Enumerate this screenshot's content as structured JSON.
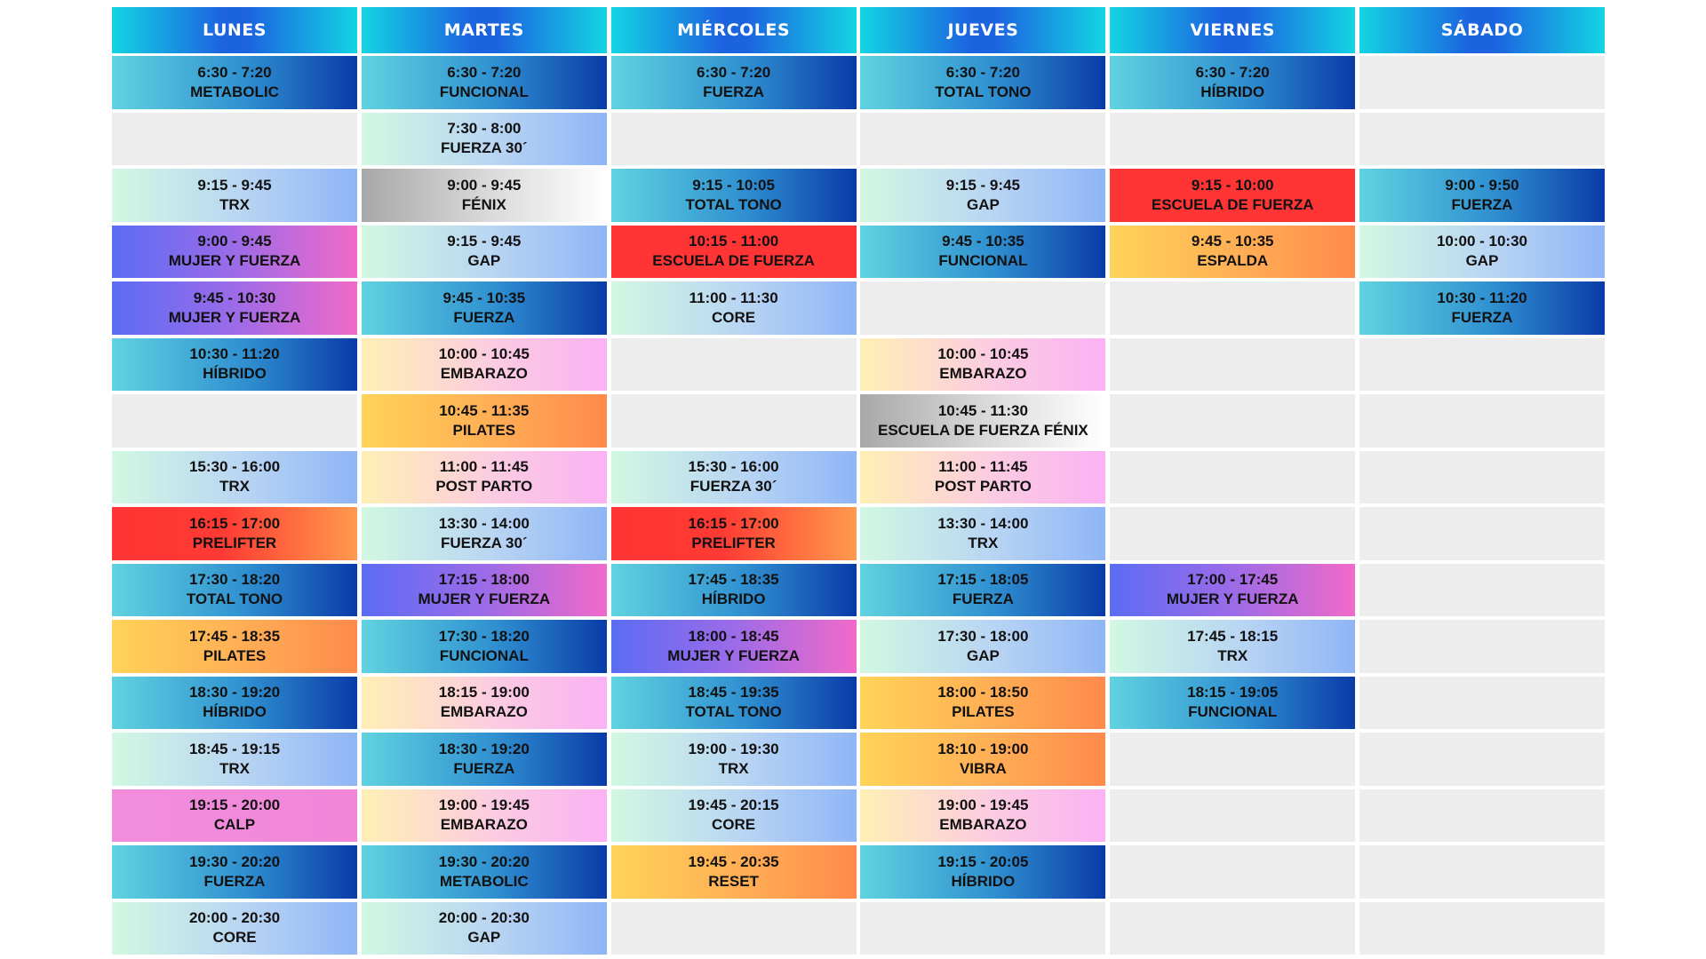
{
  "days": [
    {
      "name": "LUNES",
      "cells": [
        {
          "time": "6:30 - 7:20",
          "name": "METABOLIC",
          "style": "teal"
        },
        {
          "time": "",
          "name": "",
          "style": "empty"
        },
        {
          "time": "9:15 - 9:45",
          "name": "TRX",
          "style": "mint"
        },
        {
          "time": "9:00 - 9:45",
          "name": "MUJER Y FUERZA",
          "style": "violet"
        },
        {
          "time": "9:45 - 10:30",
          "name": "MUJER Y FUERZA",
          "style": "violet"
        },
        {
          "time": "10:30 - 11:20",
          "name": "HÍBRIDO",
          "style": "teal"
        },
        {
          "time": "",
          "name": "",
          "style": "empty"
        },
        {
          "time": "15:30 - 16:00",
          "name": "TRX",
          "style": "mint"
        },
        {
          "time": "16:15 - 17:00",
          "name": "PRELIFTER",
          "style": "red"
        },
        {
          "time": "17:30 - 18:20",
          "name": "TOTAL TONO",
          "style": "teal"
        },
        {
          "time": "17:45 - 18:35",
          "name": "PILATES",
          "style": "orange"
        },
        {
          "time": "18:30 - 19:20",
          "name": "HÍBRIDO",
          "style": "teal"
        },
        {
          "time": "18:45 - 19:15",
          "name": "TRX",
          "style": "mint"
        },
        {
          "time": "19:15 - 20:00",
          "name": "CALP",
          "style": "pink"
        },
        {
          "time": "19:30 - 20:20",
          "name": "FUERZA",
          "style": "teal"
        },
        {
          "time": "20:00 - 20:30",
          "name": "CORE",
          "style": "mint"
        }
      ]
    },
    {
      "name": "MARTES",
      "cells": [
        {
          "time": "6:30 - 7:20",
          "name": "FUNCIONAL",
          "style": "teal"
        },
        {
          "time": "7:30 - 8:00",
          "name": "FUERZA 30´",
          "style": "mint"
        },
        {
          "time": "9:00 - 9:45",
          "name": "FÉNIX",
          "style": "silver"
        },
        {
          "time": "9:15 - 9:45",
          "name": "GAP",
          "style": "mint"
        },
        {
          "time": "9:45 - 10:35",
          "name": "FUERZA",
          "style": "teal"
        },
        {
          "time": "10:00 - 10:45",
          "name": "EMBARAZO",
          "style": "peach"
        },
        {
          "time": "10:45 - 11:35",
          "name": "PILATES",
          "style": "orange"
        },
        {
          "time": "11:00 - 11:45",
          "name": "POST PARTO",
          "style": "peach"
        },
        {
          "time": "13:30 - 14:00",
          "name": "FUERZA 30´",
          "style": "mint"
        },
        {
          "time": "17:15 - 18:00",
          "name": "MUJER Y FUERZA",
          "style": "violet"
        },
        {
          "time": "17:30 - 18:20",
          "name": "FUNCIONAL",
          "style": "teal"
        },
        {
          "time": "18:15 - 19:00",
          "name": "EMBARAZO",
          "style": "peach"
        },
        {
          "time": "18:30 - 19:20",
          "name": "FUERZA",
          "style": "teal"
        },
        {
          "time": "19:00 - 19:45",
          "name": "EMBARAZO",
          "style": "peach"
        },
        {
          "time": "19:30 - 20:20",
          "name": "METABOLIC",
          "style": "teal"
        },
        {
          "time": "20:00 - 20:30",
          "name": "GAP",
          "style": "mint"
        }
      ]
    },
    {
      "name": "MIÉRCOLES",
      "cells": [
        {
          "time": "6:30 - 7:20",
          "name": "FUERZA",
          "style": "teal"
        },
        {
          "time": "",
          "name": "",
          "style": "empty"
        },
        {
          "time": "9:15 - 10:05",
          "name": "TOTAL TONO",
          "style": "teal"
        },
        {
          "time": "10:15 - 11:00",
          "name": "ESCUELA DE FUERZA",
          "style": "red-flat"
        },
        {
          "time": "11:00 - 11:30",
          "name": "CORE",
          "style": "mint"
        },
        {
          "time": "",
          "name": "",
          "style": "empty"
        },
        {
          "time": "",
          "name": "",
          "style": "empty"
        },
        {
          "time": "15:30 - 16:00",
          "name": "FUERZA 30´",
          "style": "mint"
        },
        {
          "time": "16:15 - 17:00",
          "name": "PRELIFTER",
          "style": "red"
        },
        {
          "time": "17:45 - 18:35",
          "name": "HÍBRIDO",
          "style": "teal"
        },
        {
          "time": "18:00 - 18:45",
          "name": "MUJER Y FUERZA",
          "style": "violet"
        },
        {
          "time": "18:45 - 19:35",
          "name": "TOTAL TONO",
          "style": "teal"
        },
        {
          "time": "19:00 - 19:30",
          "name": "TRX",
          "style": "mint"
        },
        {
          "time": "19:45 - 20:15",
          "name": "CORE",
          "style": "mint"
        },
        {
          "time": "19:45 - 20:35",
          "name": "RESET",
          "style": "orange"
        },
        {
          "time": "",
          "name": "",
          "style": "empty"
        }
      ]
    },
    {
      "name": "JUEVES",
      "cells": [
        {
          "time": "6:30 - 7:20",
          "name": "TOTAL TONO",
          "style": "teal"
        },
        {
          "time": "",
          "name": "",
          "style": "empty"
        },
        {
          "time": "9:15 - 9:45",
          "name": "GAP",
          "style": "mint"
        },
        {
          "time": "9:45 - 10:35",
          "name": "FUNCIONAL",
          "style": "teal"
        },
        {
          "time": "",
          "name": "",
          "style": "empty"
        },
        {
          "time": "10:00 - 10:45",
          "name": "EMBARAZO",
          "style": "peach"
        },
        {
          "time": "10:45 - 11:30",
          "name": "ESCUELA DE FUERZA FÉNIX",
          "style": "silver"
        },
        {
          "time": "11:00 - 11:45",
          "name": "POST PARTO",
          "style": "peach"
        },
        {
          "time": "13:30 - 14:00",
          "name": "TRX",
          "style": "mint"
        },
        {
          "time": "17:15 - 18:05",
          "name": "FUERZA",
          "style": "teal"
        },
        {
          "time": "17:30 - 18:00",
          "name": "GAP",
          "style": "mint"
        },
        {
          "time": "18:00 - 18:50",
          "name": "PILATES",
          "style": "orange"
        },
        {
          "time": "18:10 - 19:00",
          "name": "VIBRA",
          "style": "orange"
        },
        {
          "time": "19:00 - 19:45",
          "name": "EMBARAZO",
          "style": "peach"
        },
        {
          "time": "19:15 - 20:05",
          "name": "HÍBRIDO",
          "style": "teal"
        },
        {
          "time": "",
          "name": "",
          "style": "empty"
        }
      ]
    },
    {
      "name": "VIERNES",
      "cells": [
        {
          "time": "6:30 - 7:20",
          "name": "HÍBRIDO",
          "style": "teal"
        },
        {
          "time": "",
          "name": "",
          "style": "empty"
        },
        {
          "time": "9:15 - 10:00",
          "name": "ESCUELA DE FUERZA",
          "style": "red-flat"
        },
        {
          "time": "9:45 - 10:35",
          "name": "ESPALDA",
          "style": "orange"
        },
        {
          "time": "",
          "name": "",
          "style": "empty"
        },
        {
          "time": "",
          "name": "",
          "style": "empty"
        },
        {
          "time": "",
          "name": "",
          "style": "empty"
        },
        {
          "time": "",
          "name": "",
          "style": "empty"
        },
        {
          "time": "",
          "name": "",
          "style": "empty"
        },
        {
          "time": "17:00 - 17:45",
          "name": "MUJER Y FUERZA",
          "style": "violet"
        },
        {
          "time": "17:45 - 18:15",
          "name": "TRX",
          "style": "mint"
        },
        {
          "time": "18:15 - 19:05",
          "name": "FUNCIONAL",
          "style": "teal"
        },
        {
          "time": "",
          "name": "",
          "style": "empty"
        },
        {
          "time": "",
          "name": "",
          "style": "empty"
        },
        {
          "time": "",
          "name": "",
          "style": "empty"
        },
        {
          "time": "",
          "name": "",
          "style": "empty"
        }
      ]
    },
    {
      "name": "SÁBADO",
      "cells": [
        {
          "time": "",
          "name": "",
          "style": "empty"
        },
        {
          "time": "",
          "name": "",
          "style": "empty"
        },
        {
          "time": "9:00 - 9:50",
          "name": "FUERZA",
          "style": "teal"
        },
        {
          "time": "10:00 - 10:30",
          "name": "GAP",
          "style": "mint"
        },
        {
          "time": "10:30 - 11:20",
          "name": "FUERZA",
          "style": "teal"
        },
        {
          "time": "",
          "name": "",
          "style": "empty"
        },
        {
          "time": "",
          "name": "",
          "style": "empty"
        },
        {
          "time": "",
          "name": "",
          "style": "empty"
        },
        {
          "time": "",
          "name": "",
          "style": "empty"
        },
        {
          "time": "",
          "name": "",
          "style": "empty"
        },
        {
          "time": "",
          "name": "",
          "style": "empty"
        },
        {
          "time": "",
          "name": "",
          "style": "empty"
        },
        {
          "time": "",
          "name": "",
          "style": "empty"
        },
        {
          "time": "",
          "name": "",
          "style": "empty"
        },
        {
          "time": "",
          "name": "",
          "style": "empty"
        },
        {
          "time": "",
          "name": "",
          "style": "empty"
        }
      ]
    }
  ]
}
